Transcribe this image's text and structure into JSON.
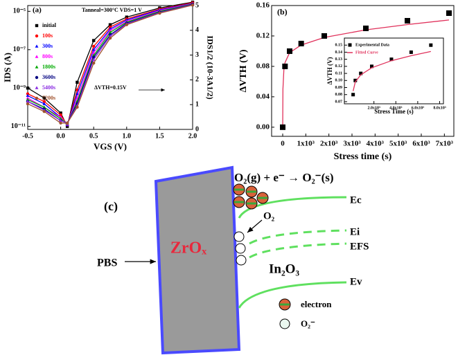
{
  "chart_data": [
    {
      "type": "line",
      "panel_label": "(a)",
      "xlabel": "VGS (V)",
      "ylabel": "IDS (A)",
      "y2label": "IDS1/2 (10-3A1/2)",
      "annotations": [
        "Tanneal=300°C  VDS=1 V",
        "ΔVTH=0.15V"
      ],
      "yscale": "log",
      "x": [
        -0.5,
        -0.25,
        0,
        0.1,
        0.25,
        0.5,
        0.75,
        1,
        1.5,
        2
      ],
      "xlim": [
        -0.5,
        2
      ],
      "xticks": [
        -0.5,
        {
          "value": 0,
          "label": "0.0"
        },
        0.5,
        {
          "value": 1,
          "label": "1.0"
        },
        1.5,
        {
          "value": 2,
          "label": "2.0"
        }
      ],
      "ylim": [
        7e-12,
        2e-05
      ],
      "yticks": [
        {
          "value": 1e-11,
          "label": "10⁻¹¹"
        },
        {
          "value": 1e-09,
          "label": "10⁻⁹"
        },
        {
          "value": 1e-07,
          "label": "10⁻⁷"
        },
        {
          "value": 1e-05,
          "label": "10⁻⁵"
        }
      ],
      "y2lim": [
        0,
        5
      ],
      "y2ticks": [
        0,
        1,
        2,
        3,
        4,
        5
      ],
      "series": [
        {
          "name": "initial",
          "color": "#000000",
          "marker": "square",
          "values": [
            1e-09,
            3e-10,
            5e-11,
            1e-11,
            2e-09,
            3e-07,
            2e-06,
            5e-06,
            1.5e-05,
            3e-05
          ]
        },
        {
          "name": "100s",
          "color": "#ff0000",
          "marker": "circle",
          "values": [
            5e-10,
            2e-10,
            4e-11,
            1.2e-11,
            8e-10,
            1.5e-07,
            1.5e-06,
            4e-06,
            1.3e-05,
            2.8e-05
          ]
        },
        {
          "name": "300s",
          "color": "#0000ff",
          "marker": "triangle",
          "values": [
            4e-10,
            1.5e-10,
            3e-11,
            1.2e-11,
            5e-10,
            1e-07,
            1.2e-06,
            3.5e-06,
            1.2e-05,
            2.6e-05
          ]
        },
        {
          "name": "800s",
          "color": "#ff00ff",
          "marker": "triangle",
          "values": [
            3e-10,
            1e-10,
            3e-11,
            1.3e-11,
            3e-10,
            7e-08,
            1e-06,
            3e-06,
            1.1e-05,
            2.5e-05
          ]
        },
        {
          "name": "1800s",
          "color": "#00aa00",
          "marker": "triangle",
          "values": [
            2.5e-10,
            1e-10,
            2.5e-11,
            1.4e-11,
            2e-10,
            5e-08,
            8e-07,
            2.7e-06,
            1e-05,
            2.4e-05
          ]
        },
        {
          "name": "3600s",
          "color": "#000080",
          "marker": "circle",
          "values": [
            2e-10,
            8e-11,
            2e-11,
            1.5e-11,
            1.5e-10,
            4e-08,
            6e-07,
            2.4e-06,
            9e-06,
            2.3e-05
          ]
        },
        {
          "name": "5400s",
          "color": "#8a2be2",
          "marker": "triangle",
          "values": [
            2e-10,
            7e-11,
            2e-11,
            1.5e-11,
            1.2e-10,
            3e-08,
            5e-07,
            2.2e-06,
            8.5e-06,
            2.2e-05
          ]
        },
        {
          "name": "7200s",
          "color": "#a0522d",
          "marker": "circle",
          "values": [
            1.5e-10,
            6e-11,
            1.5e-11,
            1.5e-11,
            1e-10,
            2e-08,
            4e-07,
            2e-06,
            8e-06,
            2.1e-05
          ]
        }
      ]
    },
    {
      "type": "scatter",
      "panel_label": "(b)",
      "xlabel": "Stress time (s)",
      "ylabel": "ΔVTH (V)",
      "xlim": [
        -480,
        7410
      ],
      "xticks": [
        0,
        {
          "value": 1000,
          "label": "1x10³"
        },
        {
          "value": 2000,
          "label": "2x10³"
        },
        {
          "value": 3000,
          "label": "3x10³"
        },
        {
          "value": 4000,
          "label": "4x10³"
        },
        {
          "value": 5000,
          "label": "5x10³"
        },
        {
          "value": 6000,
          "label": "6x10³"
        },
        {
          "value": 7000,
          "label": "7x10³"
        }
      ],
      "ylim": [
        -0.012,
        0.16
      ],
      "yticks": [
        {
          "value": 0,
          "label": "0.00"
        },
        {
          "value": 0.04,
          "label": "0.04"
        },
        {
          "value": 0.08,
          "label": "0.08"
        },
        {
          "value": 0.12,
          "label": "0.12"
        },
        {
          "value": 0.16,
          "label": "0.16"
        }
      ],
      "series": [
        {
          "color": "#e0305a",
          "marker": "line",
          "x": [
            0,
            10,
            50,
            100,
            300,
            800,
            1800,
            3600,
            5400,
            7200
          ],
          "values": [
            0,
            0.05,
            0.075,
            0.085,
            0.098,
            0.108,
            0.118,
            0.128,
            0.135,
            0.141
          ]
        },
        {
          "color": "#000000",
          "marker": "square",
          "x": [
            0,
            100,
            300,
            800,
            1800,
            3600,
            5400,
            7200
          ],
          "values": [
            0,
            0.08,
            0.1,
            0.11,
            0.12,
            0.13,
            0.14,
            0.15
          ]
        }
      ]
    },
    {
      "type": "scatter",
      "xlabel": "Stress Time (s)",
      "ylabel": "ΔVTH (V)",
      "xlim": [
        -700,
        8350
      ],
      "xticks": [
        {
          "value": 2000,
          "label": "2.0x10³"
        },
        {
          "value": 4000,
          "label": "4.0x10³"
        },
        {
          "value": 6000,
          "label": "6.0x10³"
        },
        {
          "value": 8000,
          "label": "8.0x10³"
        }
      ],
      "ylim": [
        0.067,
        0.16
      ],
      "yticks": [
        0.07,
        0.08,
        0.09,
        {
          "value": 0.1,
          "label": "0.10"
        },
        0.11,
        0.12,
        0.13,
        0.14,
        0.15
      ],
      "series": [
        {
          "name": "Experimental Data",
          "color": "#000000",
          "marker": "square",
          "x": [
            100,
            300,
            800,
            1800,
            3600,
            5400,
            7200
          ],
          "values": [
            0.08,
            0.1,
            0.11,
            0.12,
            0.13,
            0.14,
            0.15
          ]
        },
        {
          "name": "Fitted Curve",
          "color": "#e0305a",
          "marker": "line",
          "x": [
            100,
            300,
            800,
            1800,
            3600,
            5400,
            7200
          ],
          "values": [
            0.085,
            0.098,
            0.108,
            0.118,
            0.128,
            0.135,
            0.141
          ]
        }
      ]
    }
  ],
  "diagram": {
    "panel_label": "(c)",
    "reaction": "O₂(g) + e⁻ → O₂⁻(s)",
    "ec": "Ec",
    "ei": "Ei",
    "efs": "EFS",
    "ev": "Ev",
    "o2": "O₂",
    "pbs": "PBS",
    "dielectric": "ZrOₓ",
    "semiconductor": "In₂O₃",
    "legend_electron": "electron",
    "legend_o2": "O₂⁻"
  }
}
